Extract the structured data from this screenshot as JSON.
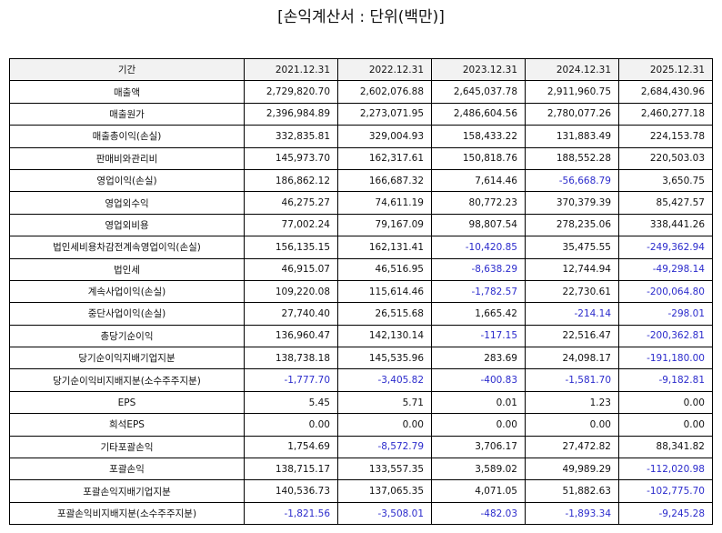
{
  "title": "[손익계산서 : 단위(백만)]",
  "table": {
    "header": [
      "기간",
      "2021.12.31",
      "2022.12.31",
      "2023.12.31",
      "2024.12.31",
      "2025.12.31"
    ],
    "rows": [
      [
        "매출액",
        "2,729,820.70",
        "2,602,076.88",
        "2,645,037.78",
        "2,911,960.75",
        "2,684,430.96"
      ],
      [
        "매출원가",
        "2,396,984.89",
        "2,273,071.95",
        "2,486,604.56",
        "2,780,077.26",
        "2,460,277.18"
      ],
      [
        "매출총이익(손실)",
        "332,835.81",
        "329,004.93",
        "158,433.22",
        "131,883.49",
        "224,153.78"
      ],
      [
        "판매비와관리비",
        "145,973.70",
        "162,317.61",
        "150,818.76",
        "188,552.28",
        "220,503.03"
      ],
      [
        "영업이익(손실)",
        "186,862.12",
        "166,687.32",
        "7,614.46",
        "-56,668.79",
        "3,650.75"
      ],
      [
        "영업외수익",
        "46,275.27",
        "74,611.19",
        "80,772.23",
        "370,379.39",
        "85,427.57"
      ],
      [
        "영업외비용",
        "77,002.24",
        "79,167.09",
        "98,807.54",
        "278,235.06",
        "338,441.26"
      ],
      [
        "법인세비용차감전계속영업이익(손실)",
        "156,135.15",
        "162,131.41",
        "-10,420.85",
        "35,475.55",
        "-249,362.94"
      ],
      [
        "법인세",
        "46,915.07",
        "46,516.95",
        "-8,638.29",
        "12,744.94",
        "-49,298.14"
      ],
      [
        "계속사업이익(손실)",
        "109,220.08",
        "115,614.46",
        "-1,782.57",
        "22,730.61",
        "-200,064.80"
      ],
      [
        "중단사업이익(손실)",
        "27,740.40",
        "26,515.68",
        "1,665.42",
        "-214.14",
        "-298.01"
      ],
      [
        "총당기순이익",
        "136,960.47",
        "142,130.14",
        "-117.15",
        "22,516.47",
        "-200,362.81"
      ],
      [
        "당기순이익지배기업지분",
        "138,738.18",
        "145,535.96",
        "283.69",
        "24,098.17",
        "-191,180.00"
      ],
      [
        "당기순이익비지배지분(소수주주지분)",
        "-1,777.70",
        "-3,405.82",
        "-400.83",
        "-1,581.70",
        "-9,182.81"
      ],
      [
        "EPS",
        "5.45",
        "5.71",
        "0.01",
        "1.23",
        "0.00"
      ],
      [
        "희석EPS",
        "0.00",
        "0.00",
        "0.00",
        "0.00",
        "0.00"
      ],
      [
        "기타포괄손익",
        "1,754.69",
        "-8,572.79",
        "3,706.17",
        "27,472.82",
        "88,341.82"
      ],
      [
        "포괄손익",
        "138,715.17",
        "133,557.35",
        "3,589.02",
        "49,989.29",
        "-112,020.98"
      ],
      [
        "포괄손익지배기업지분",
        "140,536.73",
        "137,065.35",
        "4,071.05",
        "51,882.63",
        "-102,775.70"
      ],
      [
        "포괄손익비지배지분(소수주주지분)",
        "-1,821.56",
        "-3,508.01",
        "-482.03",
        "-1,893.34",
        "-9,245.28"
      ]
    ]
  }
}
